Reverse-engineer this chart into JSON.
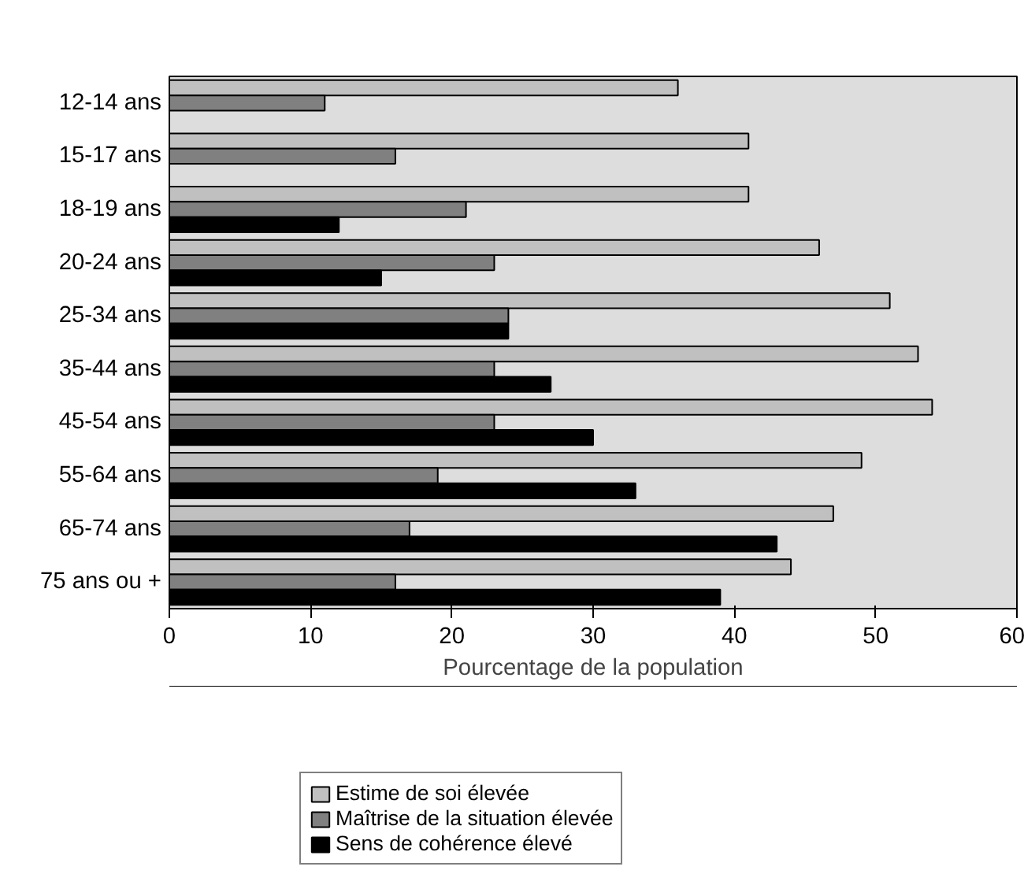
{
  "chart_data": {
    "type": "bar",
    "orientation": "horizontal",
    "xlabel": "Pourcentage de la population",
    "categories": [
      "12-14 ans",
      "15-17 ans",
      "18-19 ans",
      "20-24 ans",
      "25-34 ans",
      "35-44 ans",
      "45-54 ans",
      "55-64 ans",
      "65-74 ans",
      "75 ans ou +"
    ],
    "series": [
      {
        "name": "Estime de soi élevée",
        "color": "#c0c0c0",
        "values": [
          36,
          41,
          41,
          46,
          51,
          53,
          54,
          49,
          47,
          44
        ]
      },
      {
        "name": "Maîtrise de la situation élevée",
        "color": "#808080",
        "values": [
          11,
          16,
          21,
          23,
          24,
          23,
          23,
          19,
          17,
          16
        ]
      },
      {
        "name": "Sens de cohérence élevé",
        "color": "#000000",
        "values": [
          null,
          null,
          12,
          15,
          24,
          27,
          30,
          33,
          43,
          39
        ]
      }
    ],
    "xlim": [
      0,
      60
    ],
    "xticks": [
      0,
      10,
      20,
      30,
      40,
      50,
      60
    ],
    "grid": false,
    "legend": "bottom"
  }
}
